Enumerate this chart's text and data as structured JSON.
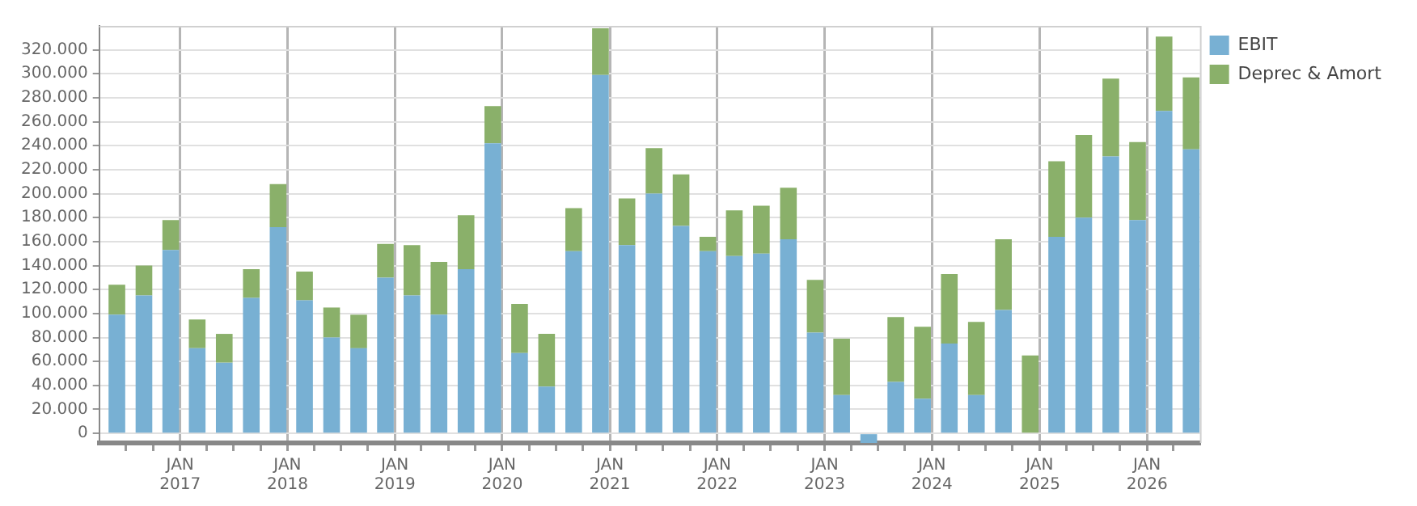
{
  "chart_data": {
    "type": "bar",
    "stacked": true,
    "legend": "top right",
    "grid": true,
    "x": [
      "2016-05-31",
      "2016-08-31",
      "2016-11-30",
      "2017-02-28",
      "2017-05-31",
      "2017-08-31",
      "2017-11-30",
      "2018-02-28",
      "2018-05-31",
      "2018-08-31",
      "2018-11-30",
      "2019-02-28",
      "2019-05-31",
      "2019-08-31",
      "2019-11-30",
      "2020-02-29",
      "2020-05-31",
      "2020-08-31",
      "2020-11-30",
      "2021-02-28",
      "2021-05-31",
      "2021-08-31",
      "2021-11-30",
      "2022-02-28",
      "2022-05-31",
      "2022-08-31",
      "2022-11-30",
      "2023-02-28",
      "2023-05-31",
      "2023-08-31",
      "2023-11-30",
      "2024-02-29",
      "2024-05-31",
      "2024-08-31",
      "2024-11-30",
      "2025-02-28",
      "2025-05-31",
      "2025-08-31",
      "2025-11-30",
      "2026-02-28",
      "2026-05-31"
    ],
    "series": [
      {
        "name": "EBIT",
        "color": "#78b0d3",
        "values": [
          99000,
          115000,
          153000,
          71000,
          59000,
          113000,
          172000,
          111000,
          80000,
          71000,
          130000,
          115000,
          99000,
          137000,
          242000,
          67000,
          39000,
          152000,
          299000,
          157000,
          200000,
          173000,
          152000,
          148000,
          150000,
          162000,
          84000,
          32000,
          -8000,
          43000,
          29000,
          75000,
          32000,
          103000,
          null,
          164000,
          180000,
          231000,
          178000,
          269000,
          237000
        ]
      },
      {
        "name": "Deprec & Amort",
        "color": "#8ab06a",
        "values": [
          25000,
          25000,
          25000,
          24000,
          24000,
          24000,
          36000,
          24000,
          25000,
          28000,
          28000,
          42000,
          44000,
          45000,
          31000,
          41000,
          44000,
          36000,
          39000,
          39000,
          38000,
          43000,
          12000,
          38000,
          40000,
          43000,
          44000,
          47000,
          null,
          54000,
          60000,
          58000,
          61000,
          59000,
          65000,
          63000,
          69000,
          65000,
          65000,
          62000,
          60000
        ]
      }
    ],
    "xlim": [
      "2016-04-01",
      "2026-06-30"
    ],
    "xticks": [
      {
        "value": "2016-07-01",
        "label": null
      },
      {
        "value": "2016-10-01",
        "label": null
      },
      {
        "value": "2017-01-01",
        "label": "JAN 2017"
      },
      {
        "value": "2017-04-01",
        "label": null
      },
      {
        "value": "2017-07-01",
        "label": null
      },
      {
        "value": "2017-10-01",
        "label": null
      },
      {
        "value": "2018-01-01",
        "label": "JAN 2018"
      },
      {
        "value": "2018-04-01",
        "label": null
      },
      {
        "value": "2018-07-01",
        "label": null
      },
      {
        "value": "2018-10-01",
        "label": null
      },
      {
        "value": "2019-01-01",
        "label": "JAN 2019"
      },
      {
        "value": "2019-04-01",
        "label": null
      },
      {
        "value": "2019-07-01",
        "label": null
      },
      {
        "value": "2019-10-01",
        "label": null
      },
      {
        "value": "2020-01-01",
        "label": "JAN 2020"
      },
      {
        "value": "2020-04-01",
        "label": null
      },
      {
        "value": "2020-07-01",
        "label": null
      },
      {
        "value": "2020-10-01",
        "label": null
      },
      {
        "value": "2021-01-01",
        "label": "JAN 2021"
      },
      {
        "value": "2021-04-01",
        "label": null
      },
      {
        "value": "2021-07-01",
        "label": null
      },
      {
        "value": "2021-10-01",
        "label": null
      },
      {
        "value": "2022-01-01",
        "label": "JAN 2022"
      },
      {
        "value": "2022-04-01",
        "label": null
      },
      {
        "value": "2022-07-01",
        "label": null
      },
      {
        "value": "2022-10-01",
        "label": null
      },
      {
        "value": "2023-01-01",
        "label": "JAN 2023"
      },
      {
        "value": "2023-04-01",
        "label": null
      },
      {
        "value": "2023-07-01",
        "label": null
      },
      {
        "value": "2023-10-01",
        "label": null
      },
      {
        "value": "2024-01-01",
        "label": "JAN 2024"
      },
      {
        "value": "2024-04-01",
        "label": null
      },
      {
        "value": "2024-07-01",
        "label": null
      },
      {
        "value": "2024-10-01",
        "label": null
      },
      {
        "value": "2025-01-01",
        "label": "JAN 2025"
      },
      {
        "value": "2025-04-01",
        "label": null
      },
      {
        "value": "2025-07-01",
        "label": null
      },
      {
        "value": "2025-10-01",
        "label": null
      },
      {
        "value": "2026-01-01",
        "label": "JAN 2026"
      },
      {
        "value": "2026-04-01",
        "label": null
      }
    ],
    "ylim": [
      -8000,
      340000
    ],
    "yticks": [
      {
        "value": 0,
        "label": "0"
      },
      {
        "value": 20000,
        "label": "20.000"
      },
      {
        "value": 40000,
        "label": "40.000"
      },
      {
        "value": 60000,
        "label": "60.000"
      },
      {
        "value": 80000,
        "label": "80.000"
      },
      {
        "value": 100000,
        "label": "100.000"
      },
      {
        "value": 120000,
        "label": "120.000"
      },
      {
        "value": 140000,
        "label": "140.000"
      },
      {
        "value": 160000,
        "label": "160.000"
      },
      {
        "value": 180000,
        "label": "180.000"
      },
      {
        "value": 200000,
        "label": "200.000"
      },
      {
        "value": 220000,
        "label": "220.000"
      },
      {
        "value": 240000,
        "label": "240.000"
      },
      {
        "value": 260000,
        "label": "260.000"
      },
      {
        "value": 280000,
        "label": "280.000"
      },
      {
        "value": 300000,
        "label": "300.000"
      },
      {
        "value": 320000,
        "label": "320.000"
      }
    ]
  }
}
